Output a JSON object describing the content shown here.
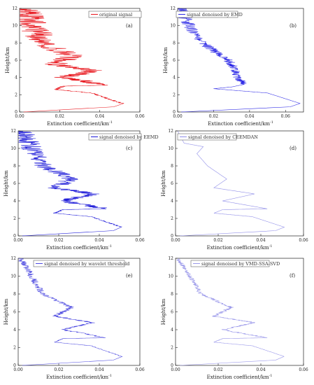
{
  "figure": {
    "panels": [
      {
        "tag": "(a)",
        "legend": "original signal",
        "color": "#e8141b",
        "noise": "original",
        "xlabel": "Extinction coefficient/km",
        "xlabel_sup": "-1",
        "ylabel": "Height/km"
      },
      {
        "tag": "(b)",
        "legend": "signal denoised by EMD",
        "color": "#2b27e6",
        "noise": "emd",
        "xlabel": "Extinction coefficient/km",
        "xlabel_sup": "-1",
        "ylabel": "Height/km"
      },
      {
        "tag": "(c)",
        "legend": "signal denoised by EEMD",
        "color": "#1a17d8",
        "noise": "eemd",
        "xlabel": "Extinction coefficient/km",
        "xlabel_sup": "-1",
        "ylabel": "Height/km"
      },
      {
        "tag": "(d)",
        "legend": "signal denoised by CEEMDAN",
        "color": "#8f8de8",
        "noise": "smooth",
        "xlabel": "Extinction coefficient/km",
        "xlabel_sup": "-1",
        "ylabel": "Height/km"
      },
      {
        "tag": "(e)",
        "legend": "signal denoised by wavelet threshold",
        "color": "#4b48e0",
        "noise": "wavelet",
        "xlabel": "Extinction coefficient/km",
        "xlabel_sup": "-1",
        "ylabel": "Height/km"
      },
      {
        "tag": "(f)",
        "legend": "signal denoised by VMD-SSA-SVD",
        "color": "#9a98ea",
        "noise": "vmd",
        "xlabel": "Extinction coefficient/km",
        "xlabel_sup": "-1",
        "ylabel": "Height/km"
      }
    ]
  },
  "chart_data": [
    {
      "type": "line",
      "series": [
        {
          "name": "original signal",
          "x": [
            0.051,
            0.036,
            0.018,
            0.022,
            0.043,
            0.022,
            0.037,
            0.018,
            0.026,
            0.012,
            0.008,
            0.004,
            0.001
          ],
          "y": [
            1,
            2.2,
            2.6,
            3,
            3.1,
            4,
            4.8,
            5.5,
            6.5,
            8,
            9.5,
            11,
            12
          ]
        }
      ],
      "xlabel": "Extinction coefficient/km",
      "ylabel": "Height/km",
      "xlim": [
        0,
        0.06
      ],
      "ylim": [
        0,
        12
      ],
      "xticks": [
        "0.00",
        "0.02",
        "0.04",
        "0.06"
      ],
      "yticks": [
        "0",
        "2",
        "4",
        "6",
        "8",
        "10",
        "12"
      ]
    },
    {
      "type": "line",
      "series": [
        {
          "name": "signal denoised by EMD",
          "x": [
            0.068,
            0.05,
            0.02,
            0.03,
            0.037,
            0.033,
            0.032,
            0.028,
            0.021,
            0.014,
            0.008,
            0.004,
            0.001
          ],
          "y": [
            1,
            2.2,
            2.7,
            2.9,
            3.2,
            4,
            5,
            6,
            7,
            8,
            9.5,
            11,
            12
          ]
        }
      ],
      "xlabel": "Extinction coefficient/km",
      "ylabel": "Height/km",
      "xlim": [
        0,
        0.07
      ],
      "ylim": [
        0,
        12
      ],
      "xticks": [
        "0.00",
        "0.02",
        "0.04",
        "0.06"
      ],
      "yticks": [
        "0",
        "2",
        "4",
        "6",
        "8",
        "10",
        "12"
      ]
    },
    {
      "type": "line",
      "series": [
        {
          "name": "signal denoised by EEMD",
          "x": [
            0.051,
            0.036,
            0.018,
            0.022,
            0.043,
            0.022,
            0.037,
            0.018,
            0.026,
            0.012,
            0.008,
            0.004,
            0.001
          ],
          "y": [
            1,
            2.2,
            2.6,
            3,
            3.1,
            4,
            4.8,
            5.5,
            6.5,
            8,
            9.5,
            11,
            12
          ]
        }
      ],
      "xlabel": "Extinction coefficient/km",
      "ylabel": "Height/km",
      "xlim": [
        0,
        0.06
      ],
      "ylim": [
        0,
        12
      ],
      "xticks": [
        "0.00",
        "0.02",
        "0.04",
        "0.06"
      ],
      "yticks": [
        "0",
        "2",
        "4",
        "6",
        "8",
        "10",
        "12"
      ]
    },
    {
      "type": "line",
      "series": [
        {
          "name": "signal denoised by CEEMDAN",
          "x": [
            0.051,
            0.036,
            0.018,
            0.022,
            0.043,
            0.022,
            0.037,
            0.018,
            0.024,
            0.015,
            0.01,
            0.013,
            0.004,
            0.001
          ],
          "y": [
            1,
            2.2,
            2.6,
            3,
            3.1,
            4,
            4.8,
            5.5,
            6.5,
            8,
            9.4,
            10.2,
            10.6,
            12
          ]
        }
      ],
      "xlabel": "Extinction coefficient/km",
      "ylabel": "Height/km",
      "xlim": [
        0,
        0.06
      ],
      "ylim": [
        0,
        12
      ],
      "xticks": [
        "0.00",
        "0.02",
        "0.04",
        "0.06"
      ],
      "yticks": [
        "0",
        "2",
        "4",
        "6",
        "8",
        "10",
        "12"
      ]
    },
    {
      "type": "line",
      "series": [
        {
          "name": "signal denoised by wavelet threshold",
          "x": [
            0.051,
            0.036,
            0.018,
            0.022,
            0.043,
            0.022,
            0.037,
            0.018,
            0.026,
            0.012,
            0.008,
            0.004,
            0.001
          ],
          "y": [
            1,
            2.2,
            2.6,
            3,
            3.1,
            4,
            4.8,
            5.5,
            6.5,
            8,
            9.5,
            11,
            12
          ]
        }
      ],
      "xlabel": "Extinction coefficient/km",
      "ylabel": "Height/km",
      "xlim": [
        0,
        0.06
      ],
      "ylim": [
        0,
        12
      ],
      "xticks": [
        "0.00",
        "0.02",
        "0.04",
        "0.06"
      ],
      "yticks": [
        "0",
        "2",
        "4",
        "6",
        "8",
        "10",
        "12"
      ]
    },
    {
      "type": "line",
      "series": [
        {
          "name": "signal denoised by VMD-SSA-SVD",
          "x": [
            0.051,
            0.036,
            0.018,
            0.022,
            0.043,
            0.022,
            0.037,
            0.018,
            0.026,
            0.012,
            0.008,
            0.004,
            0.001
          ],
          "y": [
            1,
            2.2,
            2.6,
            3,
            3.1,
            4,
            4.8,
            5.5,
            6.5,
            8,
            9.5,
            11,
            12
          ]
        }
      ],
      "xlabel": "Extinction coefficient/km",
      "ylabel": "Height/km",
      "xlim": [
        0,
        0.06
      ],
      "ylim": [
        0,
        12
      ],
      "xticks": [
        "0.00",
        "0.02",
        "0.04",
        "0.06"
      ],
      "yticks": [
        "0",
        "2",
        "4",
        "6",
        "8",
        "10",
        "12"
      ]
    }
  ]
}
